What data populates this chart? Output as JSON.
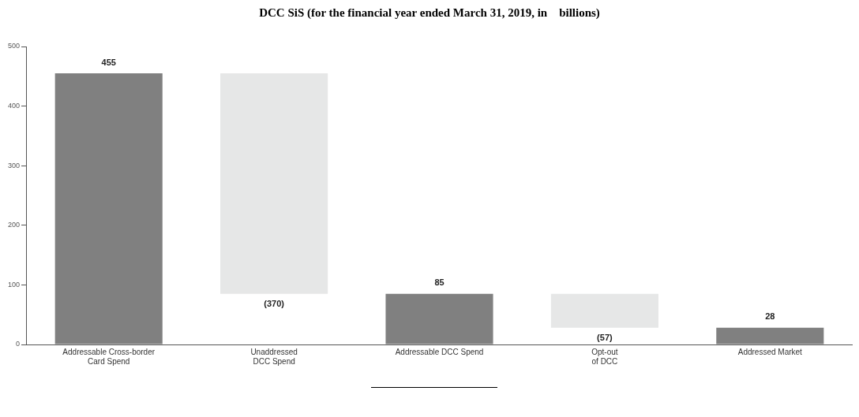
{
  "chart_data": {
    "type": "bar",
    "title": "DCC SiS (for the financial year ended March 31, 2019, in    billions)",
    "categories": [
      "Addressable Cross-border\nCard Spend",
      "Unaddressed\nDCC Spend",
      "Addressable DCC Spend",
      "Opt-out\nof DCC",
      "Addressed Market"
    ],
    "values": [
      455,
      -370,
      85,
      -57,
      28
    ],
    "base": [
      0,
      455,
      0,
      85,
      0
    ],
    "colors": [
      "#808080",
      "#e6e7e7",
      "#808080",
      "#e6e7e7",
      "#808080"
    ],
    "value_labels": [
      "455",
      "(370)",
      "85",
      "(57)",
      "28"
    ],
    "ylim": [
      0,
      500
    ],
    "yticks": [
      0,
      100,
      200,
      300,
      400,
      500
    ],
    "grid": false,
    "legend": false
  }
}
